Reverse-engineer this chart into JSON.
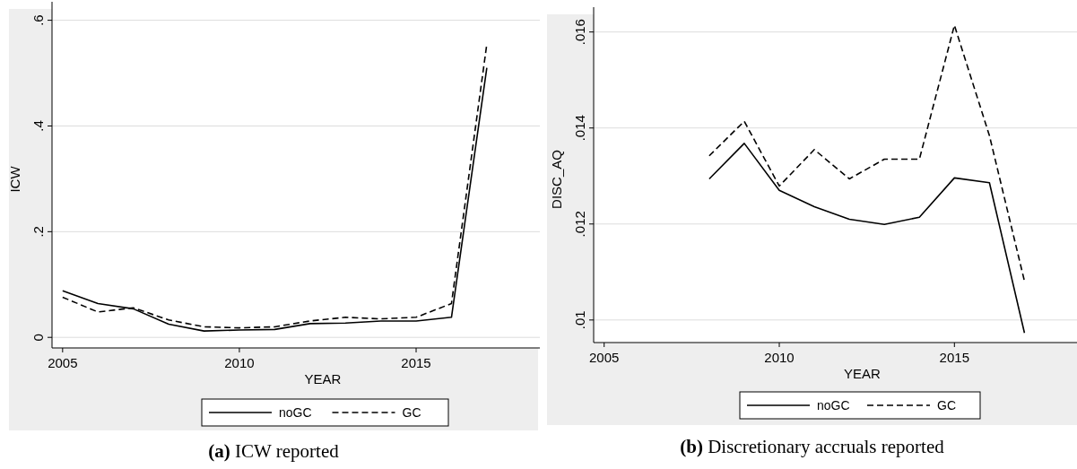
{
  "chart_data": [
    {
      "type": "line",
      "title": "(a) ICW reported",
      "xlabel": "YEAR",
      "ylabel": "ICW",
      "x": [
        2005,
        2006,
        2007,
        2008,
        2009,
        2010,
        2011,
        2012,
        2013,
        2014,
        2015,
        2016,
        2017
      ],
      "series": [
        {
          "name": "noGC",
          "color": "#000000",
          "line_style": "solid",
          "values": [
            0.088,
            0.064,
            0.054,
            0.025,
            0.012,
            0.014,
            0.015,
            0.026,
            0.027,
            0.031,
            0.031,
            0.038,
            0.51
          ]
        },
        {
          "name": "GC",
          "color": "#000000",
          "line_style": "dashed",
          "values": [
            0.076,
            0.048,
            0.056,
            0.033,
            0.02,
            0.018,
            0.02,
            0.031,
            0.038,
            0.035,
            0.038,
            0.064,
            0.555
          ]
        }
      ],
      "xlim": [
        2004.7,
        2018.5
      ],
      "xticks": [
        2005,
        2010,
        2015
      ],
      "ylim": [
        -0.02,
        0.618
      ],
      "yticks": [
        {
          "value": 0,
          "label": "0"
        },
        {
          "value": 0.2,
          "label": ".2"
        },
        {
          "value": 0.4,
          "label": ".4"
        },
        {
          "value": 0.6,
          "label": ".6"
        }
      ],
      "grid": "y",
      "legend": "bottom"
    },
    {
      "type": "line",
      "title": "(b) Discretionary accruals reported",
      "xlabel": "YEAR",
      "ylabel": "DISC_AQ",
      "x": [
        2008,
        2009,
        2010,
        2011,
        2012,
        2013,
        2014,
        2015,
        2016,
        2017
      ],
      "series": [
        {
          "name": "noGC",
          "color": "#000000",
          "line_style": "solid",
          "values": [
            0.01294,
            0.01368,
            0.0127,
            0.01236,
            0.0121,
            0.01199,
            0.01214,
            0.01296,
            0.01286,
            0.00973
          ]
        },
        {
          "name": "GC",
          "color": "#000000",
          "line_style": "dashed",
          "values": [
            0.01342,
            0.01414,
            0.01279,
            0.01355,
            0.01294,
            0.01335,
            0.01335,
            0.01614,
            0.01384,
            0.01081
          ]
        }
      ],
      "xlim": [
        2004.7,
        2018.5
      ],
      "xticks": [
        2005,
        2010,
        2015
      ],
      "ylim": [
        0.00953,
        0.01633
      ],
      "yticks": [
        {
          "value": 0.01,
          "label": ".01"
        },
        {
          "value": 0.012,
          "label": ".012"
        },
        {
          "value": 0.014,
          "label": ".014"
        },
        {
          "value": 0.016,
          "label": ".016"
        }
      ],
      "grid": "y",
      "legend": "bottom"
    }
  ]
}
